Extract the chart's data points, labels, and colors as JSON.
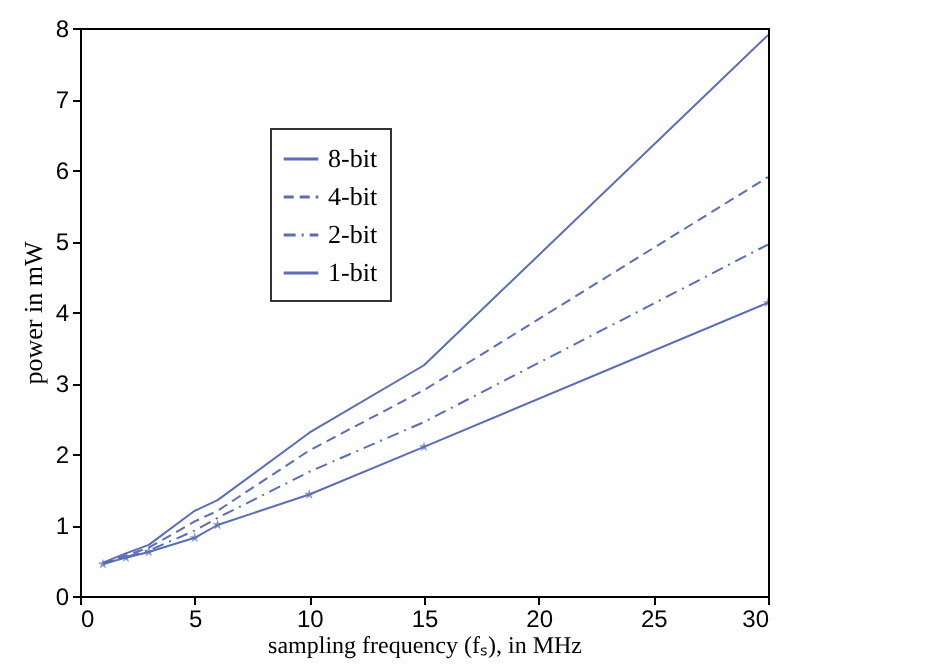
{
  "chart_data": {
    "type": "line",
    "xlabel": "sampling frequency (fₛ), in MHz",
    "ylabel": "power in mW",
    "x": [
      1,
      2,
      3,
      5,
      6,
      10,
      15,
      30
    ],
    "series": [
      {
        "name": "8-bit",
        "color": "#5a6db5",
        "line_style": "solid",
        "marker": "none",
        "values": [
          0.47,
          0.6,
          0.72,
          1.2,
          1.35,
          2.3,
          3.25,
          7.9
        ]
      },
      {
        "name": "4-bit",
        "color": "#5a6db5",
        "line_style": "dashed",
        "marker": "none",
        "values": [
          0.46,
          0.57,
          0.68,
          1.05,
          1.2,
          2.05,
          2.9,
          5.9
        ]
      },
      {
        "name": "2-bit",
        "color": "#5a6db5",
        "line_style": "dotted",
        "marker": "none",
        "values": [
          0.45,
          0.55,
          0.64,
          0.92,
          1.1,
          1.75,
          2.45,
          4.95
        ]
      },
      {
        "name": "1-bit",
        "color": "#5a6db5",
        "line_style": "solid",
        "marker": "star",
        "values": [
          0.45,
          0.54,
          0.62,
          0.82,
          1.0,
          1.43,
          2.1,
          4.13
        ]
      }
    ],
    "xlim": [
      0,
      30
    ],
    "xticks": [
      0,
      5,
      10,
      15,
      20,
      25,
      30
    ],
    "ylim": [
      0,
      8
    ],
    "yticks": [
      0,
      1,
      2,
      3,
      4,
      5,
      6,
      7,
      8
    ],
    "grid": false,
    "legend": "top left"
  }
}
